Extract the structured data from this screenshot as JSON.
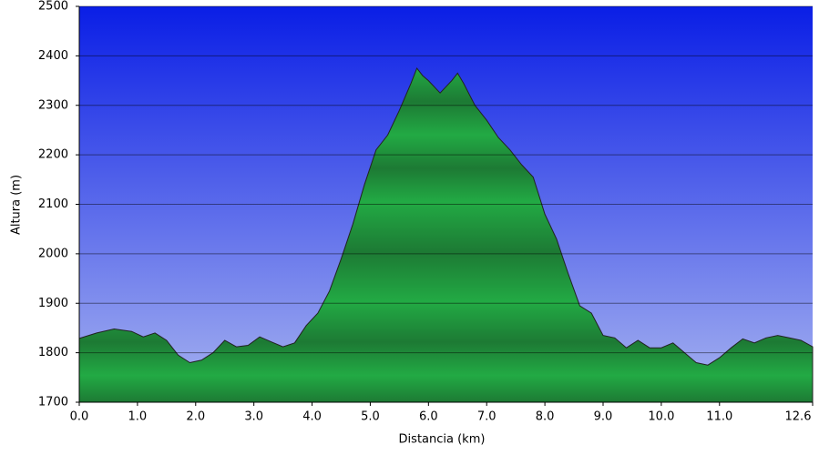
{
  "chart_data": {
    "type": "area",
    "x_label": "Distancia   (km)",
    "y_label": "Altura (m)",
    "x": [
      0.0,
      0.3,
      0.6,
      0.9,
      1.1,
      1.3,
      1.5,
      1.7,
      1.9,
      2.1,
      2.3,
      2.5,
      2.7,
      2.9,
      3.1,
      3.3,
      3.5,
      3.7,
      3.9,
      4.1,
      4.3,
      4.5,
      4.7,
      4.9,
      5.1,
      5.3,
      5.5,
      5.7,
      5.8,
      5.9,
      6.0,
      6.2,
      6.4,
      6.5,
      6.6,
      6.8,
      7.0,
      7.2,
      7.4,
      7.6,
      7.8,
      8.0,
      8.2,
      8.4,
      8.6,
      8.8,
      9.0,
      9.2,
      9.4,
      9.6,
      9.8,
      10.0,
      10.2,
      10.4,
      10.6,
      10.8,
      11.0,
      11.2,
      11.4,
      11.6,
      11.8,
      12.0,
      12.2,
      12.4,
      12.6
    ],
    "values": [
      1829,
      1840,
      1848,
      1843,
      1832,
      1840,
      1825,
      1795,
      1780,
      1785,
      1800,
      1825,
      1812,
      1815,
      1832,
      1822,
      1812,
      1820,
      1855,
      1880,
      1925,
      1990,
      2060,
      2140,
      2210,
      2240,
      2290,
      2345,
      2375,
      2360,
      2350,
      2325,
      2350,
      2365,
      2345,
      2300,
      2270,
      2235,
      2210,
      2180,
      2155,
      2080,
      2030,
      1960,
      1895,
      1880,
      1835,
      1830,
      1810,
      1825,
      1810,
      1810,
      1820,
      1800,
      1780,
      1775,
      1790,
      1810,
      1828,
      1820,
      1830,
      1835,
      1830,
      1825,
      1812
    ],
    "color": "#22aa44",
    "xlim": [
      0,
      12.6
    ],
    "xticks": [
      {
        "value": 0,
        "label": "0.0"
      },
      {
        "value": 1,
        "label": "1.0"
      },
      {
        "value": 2,
        "label": "2.0"
      },
      {
        "value": 3,
        "label": "3.0"
      },
      {
        "value": 4,
        "label": "4.0"
      },
      {
        "value": 5,
        "label": "5.0"
      },
      {
        "value": 6,
        "label": "6.0"
      },
      {
        "value": 7,
        "label": "7.0"
      },
      {
        "value": 8,
        "label": "8.0"
      },
      {
        "value": 9,
        "label": "9.0"
      },
      {
        "value": 10,
        "label": "10.0"
      },
      {
        "value": 11,
        "label": "11.0"
      },
      {
        "value": 12.6,
        "label": "12.6"
      }
    ],
    "ylim": [
      1700,
      2500
    ],
    "yticks": [
      1700,
      1800,
      1900,
      2000,
      2100,
      2200,
      2300,
      2400,
      2500
    ],
    "grid": true
  }
}
